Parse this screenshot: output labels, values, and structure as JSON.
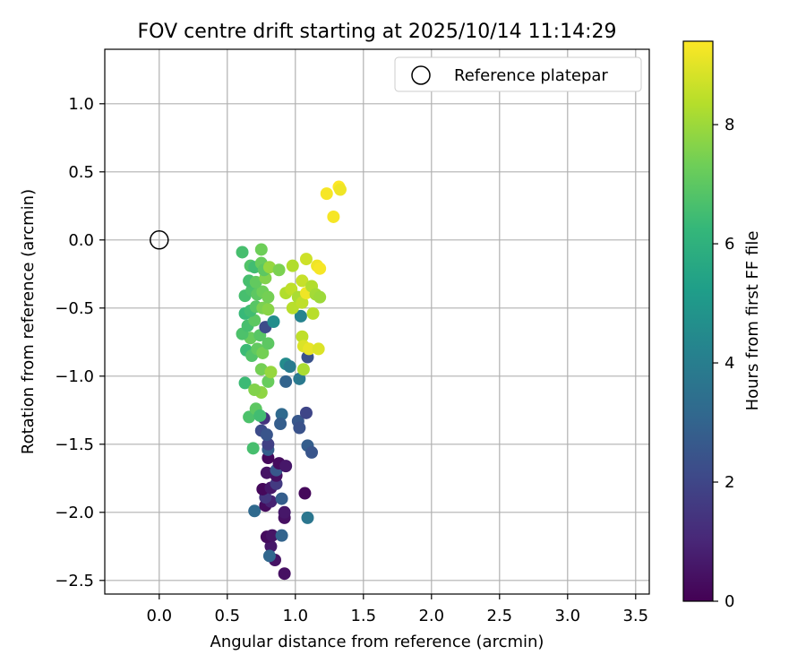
{
  "chart_data": {
    "type": "scatter",
    "title": "FOV centre drift starting at 2025/10/14 11:14:29",
    "xlabel": "Angular distance from reference (arcmin)",
    "ylabel": "Rotation from reference (arcmin)",
    "xlim": [
      -0.4,
      3.6
    ],
    "ylim": [
      -2.6,
      1.4
    ],
    "xticks": [
      0.0,
      0.5,
      1.0,
      1.5,
      2.0,
      2.5,
      3.0,
      3.5
    ],
    "xtick_labels": [
      "0.0",
      "0.5",
      "1.0",
      "1.5",
      "2.0",
      "2.5",
      "3.0",
      "3.5"
    ],
    "yticks": [
      1.0,
      0.5,
      0.0,
      -0.5,
      -1.0,
      -1.5,
      -2.0,
      -2.5
    ],
    "ytick_labels": [
      "1.0",
      "0.5",
      "0.0",
      "−0.5",
      "−1.0",
      "−1.5",
      "−2.0",
      "−2.5"
    ],
    "grid": true,
    "legend": {
      "placement": "top-right",
      "entries": [
        "Reference platepar"
      ]
    },
    "reference": {
      "x": 0.0,
      "y": 0.0,
      "label": "Reference platepar"
    },
    "colorbar": {
      "label": "Hours from first FF file",
      "range": [
        0,
        9.4
      ],
      "ticks": [
        0,
        2,
        4,
        6,
        8
      ],
      "tick_labels": [
        "0",
        "2",
        "4",
        "6",
        "8"
      ],
      "colormap": "viridis",
      "stops": [
        "#440154",
        "#482878",
        "#3e4989",
        "#31688e",
        "#26828e",
        "#1f9e89",
        "#35b779",
        "#6ece58",
        "#b5de2b",
        "#fde725"
      ]
    },
    "points": [
      {
        "x": 0.92,
        "y": -2.45,
        "h": 0.4
      },
      {
        "x": 0.85,
        "y": -2.35,
        "h": 0.5
      },
      {
        "x": 0.82,
        "y": -2.25,
        "h": 0.6
      },
      {
        "x": 0.79,
        "y": -2.18,
        "h": 0.3
      },
      {
        "x": 0.83,
        "y": -2.17,
        "h": 0.5
      },
      {
        "x": 0.9,
        "y": -2.17,
        "h": 3.0
      },
      {
        "x": 0.81,
        "y": -2.32,
        "h": 3.1
      },
      {
        "x": 0.92,
        "y": -2.04,
        "h": 0.4
      },
      {
        "x": 0.92,
        "y": -2.0,
        "h": 0.6
      },
      {
        "x": 0.7,
        "y": -1.99,
        "h": 3.2
      },
      {
        "x": 1.09,
        "y": -2.04,
        "h": 3.7
      },
      {
        "x": 0.78,
        "y": -1.95,
        "h": 0.3
      },
      {
        "x": 0.82,
        "y": -1.92,
        "h": 0.9
      },
      {
        "x": 0.78,
        "y": -1.89,
        "h": 1.5
      },
      {
        "x": 0.9,
        "y": -1.9,
        "h": 2.8
      },
      {
        "x": 0.76,
        "y": -1.83,
        "h": 0.2
      },
      {
        "x": 0.82,
        "y": -1.82,
        "h": 0.6
      },
      {
        "x": 0.86,
        "y": -1.79,
        "h": 1.6
      },
      {
        "x": 0.86,
        "y": -1.73,
        "h": 0.4
      },
      {
        "x": 0.79,
        "y": -1.71,
        "h": 0.5
      },
      {
        "x": 0.86,
        "y": -1.69,
        "h": 2.6
      },
      {
        "x": 0.88,
        "y": -1.64,
        "h": 0.3
      },
      {
        "x": 0.93,
        "y": -1.66,
        "h": 0.6
      },
      {
        "x": 1.07,
        "y": -1.86,
        "h": 0.2
      },
      {
        "x": 0.8,
        "y": -1.6,
        "h": 0.2
      },
      {
        "x": 0.8,
        "y": -1.54,
        "h": 2.8
      },
      {
        "x": 0.8,
        "y": -1.5,
        "h": 1.8
      },
      {
        "x": 0.75,
        "y": -1.4,
        "h": 2.2
      },
      {
        "x": 0.79,
        "y": -1.43,
        "h": 2.5
      },
      {
        "x": 0.77,
        "y": -1.31,
        "h": 1.4
      },
      {
        "x": 0.69,
        "y": -1.53,
        "h": 6.6
      },
      {
        "x": 0.9,
        "y": -1.28,
        "h": 3.2
      },
      {
        "x": 0.89,
        "y": -1.35,
        "h": 2.8
      },
      {
        "x": 1.02,
        "y": -1.33,
        "h": 2.6
      },
      {
        "x": 1.03,
        "y": -1.38,
        "h": 2.4
      },
      {
        "x": 1.08,
        "y": -1.27,
        "h": 2.0
      },
      {
        "x": 1.09,
        "y": -1.51,
        "h": 2.8
      },
      {
        "x": 1.12,
        "y": -1.56,
        "h": 2.5
      },
      {
        "x": 0.66,
        "y": -1.3,
        "h": 6.7
      },
      {
        "x": 0.71,
        "y": -1.24,
        "h": 7.0
      },
      {
        "x": 0.74,
        "y": -1.29,
        "h": 6.5
      },
      {
        "x": 0.75,
        "y": -1.12,
        "h": 7.8
      },
      {
        "x": 0.63,
        "y": -1.05,
        "h": 6.4
      },
      {
        "x": 0.7,
        "y": -1.1,
        "h": 7.6
      },
      {
        "x": 0.8,
        "y": -1.04,
        "h": 7.2
      },
      {
        "x": 0.93,
        "y": -1.04,
        "h": 3.0
      },
      {
        "x": 1.03,
        "y": -1.02,
        "h": 3.8
      },
      {
        "x": 0.75,
        "y": -0.95,
        "h": 7.4
      },
      {
        "x": 0.82,
        "y": -0.97,
        "h": 7.9
      },
      {
        "x": 0.93,
        "y": -0.91,
        "h": 4.5
      },
      {
        "x": 0.96,
        "y": -0.93,
        "h": 3.9
      },
      {
        "x": 1.06,
        "y": -0.95,
        "h": 8.2
      },
      {
        "x": 1.09,
        "y": -0.86,
        "h": 2.4
      },
      {
        "x": 0.64,
        "y": -0.81,
        "h": 6.4
      },
      {
        "x": 0.68,
        "y": -0.85,
        "h": 6.8
      },
      {
        "x": 0.72,
        "y": -0.8,
        "h": 7.1
      },
      {
        "x": 0.76,
        "y": -0.83,
        "h": 7.4
      },
      {
        "x": 0.8,
        "y": -0.76,
        "h": 7.0
      },
      {
        "x": 0.67,
        "y": -0.72,
        "h": 7.2
      },
      {
        "x": 0.61,
        "y": -0.69,
        "h": 6.7
      },
      {
        "x": 0.74,
        "y": -0.7,
        "h": 6.9
      },
      {
        "x": 0.78,
        "y": -0.64,
        "h": 2.2
      },
      {
        "x": 0.84,
        "y": -0.6,
        "h": 4.6
      },
      {
        "x": 1.04,
        "y": -0.56,
        "h": 4.2
      },
      {
        "x": 0.65,
        "y": -0.63,
        "h": 6.6
      },
      {
        "x": 0.7,
        "y": -0.59,
        "h": 7.0
      },
      {
        "x": 0.63,
        "y": -0.54,
        "h": 6.3
      },
      {
        "x": 0.67,
        "y": -0.52,
        "h": 6.5
      },
      {
        "x": 0.71,
        "y": -0.49,
        "h": 6.9
      },
      {
        "x": 0.76,
        "y": -0.5,
        "h": 7.5
      },
      {
        "x": 0.8,
        "y": -0.51,
        "h": 7.7
      },
      {
        "x": 0.63,
        "y": -0.41,
        "h": 6.6
      },
      {
        "x": 0.68,
        "y": -0.37,
        "h": 6.7
      },
      {
        "x": 0.72,
        "y": -0.4,
        "h": 7.0
      },
      {
        "x": 0.76,
        "y": -0.38,
        "h": 7.3
      },
      {
        "x": 0.8,
        "y": -0.42,
        "h": 7.4
      },
      {
        "x": 0.66,
        "y": -0.3,
        "h": 6.6
      },
      {
        "x": 0.71,
        "y": -0.31,
        "h": 7.1
      },
      {
        "x": 0.78,
        "y": -0.28,
        "h": 7.6
      },
      {
        "x": 0.67,
        "y": -0.19,
        "h": 6.8
      },
      {
        "x": 0.7,
        "y": -0.2,
        "h": 6.5
      },
      {
        "x": 0.75,
        "y": -0.17,
        "h": 7.2
      },
      {
        "x": 0.77,
        "y": -0.22,
        "h": 7.0
      },
      {
        "x": 0.81,
        "y": -0.2,
        "h": 7.9
      },
      {
        "x": 0.88,
        "y": -0.22,
        "h": 7.5
      },
      {
        "x": 0.61,
        "y": -0.09,
        "h": 6.6
      },
      {
        "x": 0.75,
        "y": -0.07,
        "h": 7.3
      },
      {
        "x": 0.93,
        "y": -0.39,
        "h": 8.3
      },
      {
        "x": 0.97,
        "y": -0.36,
        "h": 8.5
      },
      {
        "x": 0.98,
        "y": -0.19,
        "h": 8.3
      },
      {
        "x": 1.08,
        "y": -0.14,
        "h": 8.7
      },
      {
        "x": 1.05,
        "y": -0.3,
        "h": 8.6
      },
      {
        "x": 1.02,
        "y": -0.42,
        "h": 8.2
      },
      {
        "x": 0.98,
        "y": -0.5,
        "h": 8.4
      },
      {
        "x": 1.05,
        "y": -0.46,
        "h": 8.5
      },
      {
        "x": 1.08,
        "y": -0.39,
        "h": 9.2
      },
      {
        "x": 1.12,
        "y": -0.34,
        "h": 8.3
      },
      {
        "x": 1.15,
        "y": -0.4,
        "h": 8.1
      },
      {
        "x": 1.18,
        "y": -0.42,
        "h": 8.0
      },
      {
        "x": 1.13,
        "y": -0.54,
        "h": 8.4
      },
      {
        "x": 1.05,
        "y": -0.71,
        "h": 8.5
      },
      {
        "x": 1.06,
        "y": -0.78,
        "h": 8.9
      },
      {
        "x": 1.1,
        "y": -0.8,
        "h": 9.1
      },
      {
        "x": 1.17,
        "y": -0.8,
        "h": 8.9
      },
      {
        "x": 1.16,
        "y": -0.19,
        "h": 9.2
      },
      {
        "x": 1.18,
        "y": -0.21,
        "h": 9.3
      },
      {
        "x": 1.28,
        "y": 0.17,
        "h": 9.3
      },
      {
        "x": 1.23,
        "y": 0.34,
        "h": 9.3
      },
      {
        "x": 1.32,
        "y": 0.39,
        "h": 9.4
      },
      {
        "x": 1.33,
        "y": 0.37,
        "h": 9.2
      }
    ]
  }
}
